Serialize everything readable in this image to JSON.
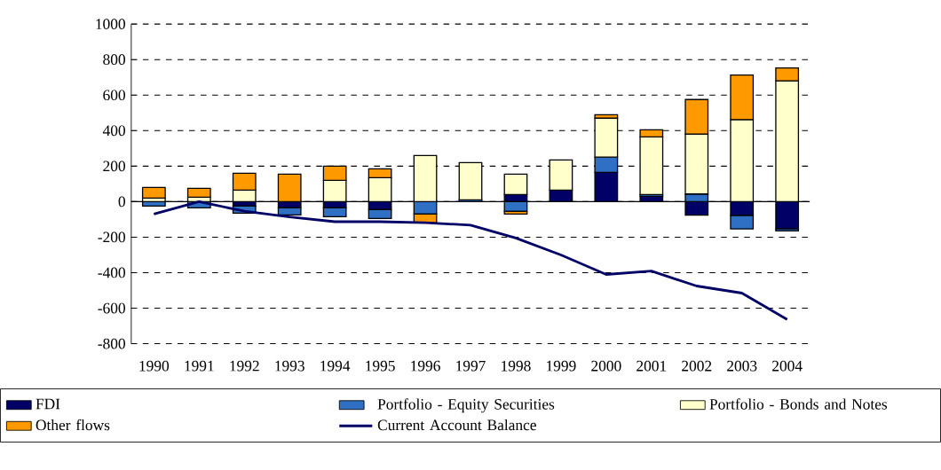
{
  "chart_data": {
    "type": "bar",
    "stacked": true,
    "categories": [
      "1990",
      "1991",
      "1992",
      "1993",
      "1994",
      "1995",
      "1996",
      "1997",
      "1998",
      "1999",
      "2000",
      "2001",
      "2002",
      "2003",
      "2004"
    ],
    "series": [
      {
        "name": "FDI",
        "color": "#000066",
        "values": [
          null,
          null,
          -25,
          -35,
          -35,
          -45,
          0,
          0,
          40,
          65,
          165,
          30,
          -76,
          -78,
          -154
        ]
      },
      {
        "name": "Portfolio - Equity Securities",
        "color": "#2f6fc4",
        "values": [
          -25,
          -35,
          -40,
          -40,
          -50,
          -50,
          -70,
          10,
          -55,
          0,
          86,
          10,
          43,
          -76,
          -11
        ]
      },
      {
        "name": "Portfolio - Bonds and Notes",
        "color": "#ffffcc",
        "values": [
          20,
          25,
          65,
          null,
          120,
          135,
          260,
          210,
          115,
          170,
          219,
          325,
          338,
          462,
          680
        ]
      },
      {
        "name": "Other flows",
        "color": "#ff9900",
        "values": [
          60,
          50,
          95,
          155,
          80,
          50,
          -50,
          null,
          -15,
          0,
          19,
          40,
          194,
          251,
          73
        ]
      },
      {
        "name": "Current Account Balance",
        "type": "line",
        "color": "#000066",
        "values": [
          -70,
          0,
          -54,
          -86,
          -113,
          -113,
          -119,
          -132,
          -205,
          -300,
          -410,
          -391,
          -475,
          -515,
          -664
        ]
      }
    ],
    "ylim": [
      -800,
      1000
    ],
    "yticks": [
      -800,
      -600,
      -400,
      -200,
      0,
      200,
      400,
      600,
      800,
      1000
    ],
    "grid": "y",
    "legend": "bottom"
  }
}
